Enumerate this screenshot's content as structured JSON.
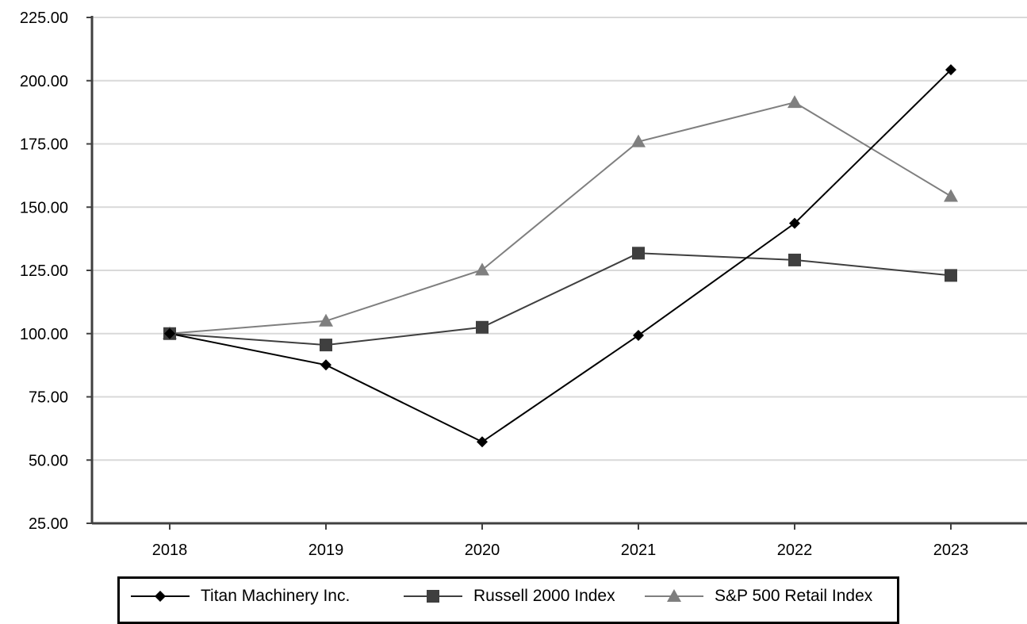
{
  "chart_data": {
    "type": "line",
    "categories": [
      "2018",
      "2019",
      "2020",
      "2021",
      "2022",
      "2023"
    ],
    "ylim": [
      25,
      225
    ],
    "yticks": [
      "25.00",
      "50.00",
      "75.00",
      "100.00",
      "125.00",
      "150.00",
      "175.00",
      "200.00",
      "225.00"
    ],
    "grid": true,
    "legend_position": "bottom",
    "series": [
      {
        "name": "Titan Machinery Inc.",
        "marker": "diamond",
        "color": "#000000",
        "values": [
          100.0,
          87.6,
          57.2,
          99.3,
          143.6,
          204.3
        ]
      },
      {
        "name": "Russell 2000 Index",
        "marker": "square",
        "color": "#3f3f3f",
        "values": [
          100.0,
          95.5,
          102.5,
          131.8,
          129.1,
          123.0
        ]
      },
      {
        "name": "S&P 500 Retail Index",
        "marker": "triangle",
        "color": "#7f7f7f",
        "values": [
          100.0,
          105.0,
          125.2,
          175.9,
          191.4,
          154.3
        ]
      }
    ]
  }
}
